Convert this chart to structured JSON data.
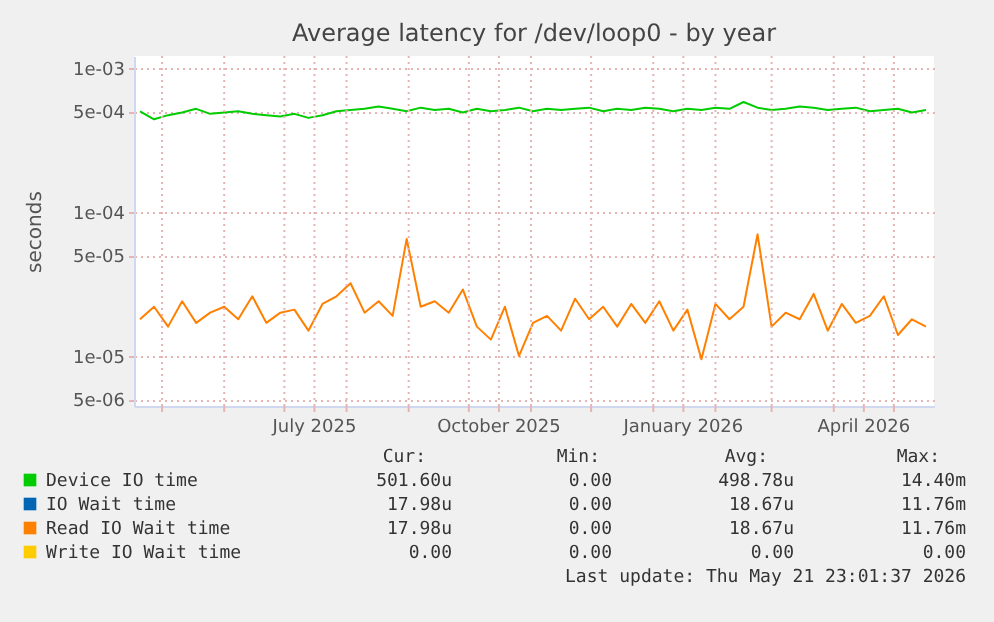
{
  "chart_data": {
    "type": "line",
    "title": "Average latency for /dev/loop0 - by year",
    "ylabel": "seconds",
    "x": [
      "2025-04-20",
      "2025-04-27",
      "2025-05-04",
      "2025-05-11",
      "2025-05-18",
      "2025-05-25",
      "2025-06-01",
      "2025-06-08",
      "2025-06-15",
      "2025-06-22",
      "2025-06-29",
      "2025-07-06",
      "2025-07-13",
      "2025-07-20",
      "2025-07-27",
      "2025-08-03",
      "2025-08-10",
      "2025-08-17",
      "2025-08-24",
      "2025-08-31",
      "2025-09-07",
      "2025-09-14",
      "2025-09-21",
      "2025-09-28",
      "2025-10-05",
      "2025-10-12",
      "2025-10-19",
      "2025-10-26",
      "2025-11-02",
      "2025-11-09",
      "2025-11-16",
      "2025-11-23",
      "2025-11-30",
      "2025-12-07",
      "2025-12-14",
      "2025-12-21",
      "2025-12-28",
      "2026-01-04",
      "2026-01-11",
      "2026-01-18",
      "2026-01-25",
      "2026-02-01",
      "2026-02-08",
      "2026-02-15",
      "2026-02-22",
      "2026-03-01",
      "2026-03-08",
      "2026-03-15",
      "2026-03-22",
      "2026-03-29",
      "2026-04-05",
      "2026-04-12",
      "2026-04-19",
      "2026-04-26",
      "2026-05-03",
      "2026-05-10",
      "2026-05-17"
    ],
    "series": [
      {
        "name": "Device IO time",
        "color": "#00cc00",
        "values": [
          0.0005,
          0.00044,
          0.00047,
          0.00049,
          0.00052,
          0.00048,
          0.00049,
          0.0005,
          0.00048,
          0.00047,
          0.00046,
          0.00048,
          0.00045,
          0.00047,
          0.0005,
          0.00051,
          0.00052,
          0.00054,
          0.00052,
          0.0005,
          0.00053,
          0.00051,
          0.00052,
          0.00049,
          0.00052,
          0.0005,
          0.00051,
          0.00053,
          0.0005,
          0.00052,
          0.00051,
          0.00052,
          0.00053,
          0.0005,
          0.00052,
          0.00051,
          0.00053,
          0.00052,
          0.0005,
          0.00052,
          0.00051,
          0.00053,
          0.00052,
          0.00058,
          0.00053,
          0.00051,
          0.00052,
          0.00054,
          0.00053,
          0.00051,
          0.00052,
          0.00053,
          0.0005,
          0.00051,
          0.00052,
          0.00049,
          0.00051
        ]
      },
      {
        "name": "IO Wait time",
        "color": "#0066b3",
        "values": [
          null,
          null,
          null,
          null,
          null,
          null,
          null,
          null,
          null,
          null,
          null,
          null,
          null,
          null,
          null,
          null,
          null,
          null,
          null,
          null,
          null,
          null,
          null,
          null,
          null,
          null,
          null,
          null,
          null,
          null,
          null,
          null,
          null,
          null,
          null,
          null,
          null,
          null,
          null,
          null,
          null,
          null,
          null,
          null,
          null,
          null,
          null,
          null,
          null,
          null,
          null,
          null,
          null,
          null,
          null,
          null,
          null
        ]
      },
      {
        "name": "Read IO Wait time",
        "color": "#ff8000",
        "values": [
          1.8e-05,
          2.2e-05,
          1.6e-05,
          2.4e-05,
          1.7e-05,
          2e-05,
          2.2e-05,
          1.8e-05,
          2.6e-05,
          1.7e-05,
          2e-05,
          2.1e-05,
          1.5e-05,
          2.3e-05,
          2.6e-05,
          3.2e-05,
          2e-05,
          2.4e-05,
          1.9e-05,
          6.5e-05,
          2.2e-05,
          2.4e-05,
          2e-05,
          2.9e-05,
          1.6e-05,
          1.3e-05,
          2.2e-05,
          1e-05,
          1.7e-05,
          1.9e-05,
          1.5e-05,
          2.5e-05,
          1.8e-05,
          2.2e-05,
          1.6e-05,
          2.3e-05,
          1.7e-05,
          2.4e-05,
          1.5e-05,
          2.1e-05,
          9.5e-06,
          2.3e-05,
          1.8e-05,
          2.2e-05,
          7e-05,
          1.6e-05,
          2e-05,
          1.8e-05,
          2.7e-05,
          1.5e-05,
          2.3e-05,
          1.7e-05,
          1.9e-05,
          2.6e-05,
          1.4e-05,
          1.8e-05,
          1.6e-05
        ]
      },
      {
        "name": "Write IO Wait time",
        "color": "#ffcc00",
        "values": [
          null,
          null,
          null,
          null,
          null,
          null,
          null,
          null,
          null,
          null,
          null,
          null,
          null,
          null,
          null,
          null,
          null,
          null,
          null,
          null,
          null,
          null,
          null,
          null,
          null,
          null,
          null,
          null,
          null,
          null,
          null,
          null,
          null,
          null,
          null,
          null,
          null,
          null,
          null,
          null,
          null,
          null,
          null,
          null,
          null,
          null,
          null,
          null,
          null,
          null,
          null,
          null,
          null,
          null,
          null,
          null,
          null
        ]
      }
    ],
    "xlim": [
      "2025-04-17",
      "2026-05-21"
    ],
    "xticks": [
      {
        "value": "2025-05-01",
        "label": null
      },
      {
        "value": "2025-06-01",
        "label": null
      },
      {
        "value": "2025-07-01",
        "label": null
      },
      {
        "value": "2025-07-16",
        "label": "July 2025"
      },
      {
        "value": "2025-08-01",
        "label": null
      },
      {
        "value": "2025-09-01",
        "label": null
      },
      {
        "value": "2025-10-01",
        "label": null
      },
      {
        "value": "2025-10-16",
        "label": "October 2025"
      },
      {
        "value": "2025-11-01",
        "label": null
      },
      {
        "value": "2025-12-01",
        "label": null
      },
      {
        "value": "2026-01-01",
        "label": null
      },
      {
        "value": "2026-01-16",
        "label": "January 2026"
      },
      {
        "value": "2026-02-01",
        "label": null
      },
      {
        "value": "2026-03-01",
        "label": null
      },
      {
        "value": "2026-04-01",
        "label": null
      },
      {
        "value": "2026-04-16",
        "label": "April 2026"
      },
      {
        "value": "2026-05-01",
        "label": null
      }
    ],
    "ylim": [
      4.5e-06,
      0.00121
    ],
    "yticks": [
      {
        "value": 0.001,
        "label": "1e-03"
      },
      {
        "value": 0.0005,
        "label": "5e-04"
      },
      {
        "value": 0.0001,
        "label": "1e-04"
      },
      {
        "value": 5e-05,
        "label": "5e-05"
      },
      {
        "value": 1e-05,
        "label": "1e-05"
      },
      {
        "value": 5e-06,
        "label": "5e-06"
      }
    ],
    "log": true,
    "grid": true,
    "legend": "bottom",
    "annotations": [
      "Cur:",
      "Min:",
      "Avg:",
      "Max:",
      "501.60u",
      "0.00",
      "498.78u",
      "14.40m",
      "17.98u",
      "0.00",
      "18.67u",
      "11.76m",
      "17.98u",
      "0.00",
      "18.67u",
      "11.76m",
      "0.00",
      "0.00",
      "0.00",
      "0.00",
      "Last update: Thu May 21 23:01:37 2026"
    ]
  }
}
